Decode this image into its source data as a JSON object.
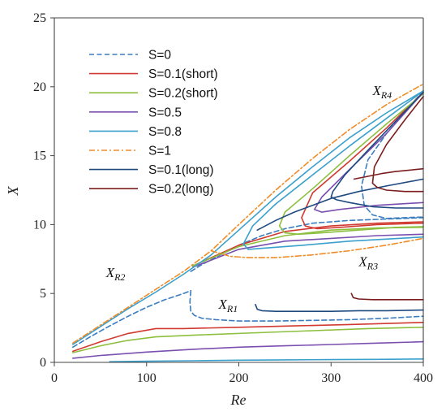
{
  "chart_data": {
    "type": "line",
    "xlabel": "Re",
    "ylabel": "X",
    "xlim": [
      0,
      400
    ],
    "ylim": [
      0,
      25
    ],
    "xticks": [
      "0",
      "100",
      "200",
      "300",
      "400"
    ],
    "yticks": [
      "0",
      "5",
      "10",
      "15",
      "20",
      "25"
    ],
    "grid": false,
    "legend_position": "top-left",
    "series": [
      {
        "name": "S=0",
        "color": "#3A7DC0",
        "dash": "dashed",
        "curves": [
          {
            "x": [
              20,
              40,
              60,
              80,
              100,
              120,
              140,
              148
            ],
            "y": [
              1.1,
              1.9,
              2.65,
              3.35,
              4.0,
              4.55,
              5.0,
              5.2
            ]
          },
          {
            "x": [
              148,
              147,
              148,
              152,
              160,
              175,
              200,
              240,
              280,
              320,
              360,
              400
            ],
            "y": [
              5.2,
              4.4,
              3.7,
              3.4,
              3.2,
              3.1,
              3.0,
              3.0,
              3.05,
              3.1,
              3.2,
              3.35
            ]
          },
          {
            "x": [
              148,
              160,
              180,
              200,
              225,
              250,
              280,
              320,
              360,
              400
            ],
            "y": [
              6.6,
              7.1,
              7.8,
              8.5,
              9.2,
              9.7,
              10.1,
              10.3,
              10.4,
              10.5
            ]
          },
          {
            "x": [
              400,
              380,
              360,
              340,
              333,
              336,
              345,
              360,
              380,
              400
            ],
            "y": [
              19.7,
              18.2,
              16.6,
              14.7,
              12.8,
              11.4,
              10.7,
              10.45,
              10.5,
              10.55
            ]
          }
        ]
      },
      {
        "name": "S=0.1(short)",
        "color": "#D03A30",
        "dash": "solid",
        "curves": [
          {
            "x": [
              20,
              50,
              80,
              110,
              140,
              200,
              260,
              320,
              400
            ],
            "y": [
              0.8,
              1.5,
              2.1,
              2.45,
              2.45,
              2.55,
              2.65,
              2.75,
              2.9
            ]
          },
          {
            "x": [
              150,
              200,
              250,
              300,
              350,
              400
            ],
            "y": [
              7.0,
              8.5,
              9.5,
              9.9,
              10.1,
              10.2
            ]
          },
          {
            "x": [
              400,
              360,
              320,
              280,
              268,
              272,
              285,
              310,
              350,
              400
            ],
            "y": [
              19.6,
              17.0,
              14.6,
              12.3,
              10.5,
              9.9,
              9.7,
              9.8,
              10.0,
              10.1
            ]
          }
        ]
      },
      {
        "name": "S=0.2(short)",
        "color": "#8DBF3F",
        "dash": "solid",
        "curves": [
          {
            "x": [
              20,
              50,
              80,
              110,
              160,
              220,
              280,
              340,
              400
            ],
            "y": [
              0.7,
              1.2,
              1.6,
              1.85,
              2.0,
              2.15,
              2.3,
              2.45,
              2.55
            ]
          },
          {
            "x": [
              150,
              200,
              250,
              300,
              350,
              400
            ],
            "y": [
              7.0,
              8.4,
              9.2,
              9.6,
              9.75,
              9.8
            ]
          },
          {
            "x": [
              400,
              360,
              320,
              280,
              250,
              244,
              250,
              265,
              290,
              330,
              370,
              400
            ],
            "y": [
              19.5,
              17.3,
              15.0,
              12.6,
              10.9,
              9.9,
              9.4,
              9.3,
              9.4,
              9.6,
              9.8,
              9.85
            ]
          }
        ]
      },
      {
        "name": "S=0.5",
        "color": "#7A4FB0",
        "dash": "solid",
        "curves": [
          {
            "x": [
              20,
              50,
              100,
              150,
              200,
              250,
              300,
              350,
              400
            ],
            "y": [
              0.3,
              0.5,
              0.75,
              0.95,
              1.1,
              1.2,
              1.3,
              1.4,
              1.5
            ]
          },
          {
            "x": [
              150,
              200,
              250,
              300,
              350,
              400
            ],
            "y": [
              6.9,
              8.2,
              8.8,
              9.0,
              9.2,
              9.3
            ]
          },
          {
            "x": [
              400,
              360,
              320,
              290,
              282,
              290,
              310,
              350,
              400
            ],
            "y": [
              19.6,
              16.6,
              14.0,
              12.0,
              11.1,
              10.9,
              11.1,
              11.4,
              11.6
            ]
          }
        ]
      },
      {
        "name": "S=0.8",
        "color": "#3BA0CC",
        "dash": "solid",
        "curves": [
          {
            "x": [
              60,
              100,
              150,
              200,
              250,
              300,
              350,
              400
            ],
            "y": [
              0.05,
              0.08,
              0.12,
              0.16,
              0.18,
              0.2,
              0.22,
              0.25
            ]
          },
          {
            "x": [
              20,
              50,
              80,
              110,
              140,
              170,
              200,
              240,
              280,
              320,
              360,
              400
            ],
            "y": [
              1.3,
              2.6,
              3.9,
              5.1,
              6.4,
              7.8,
              9.6,
              12.0,
              14.2,
              16.3,
              18.1,
              19.7
            ]
          },
          {
            "x": [
              400,
              360,
              320,
              280,
              240,
              215,
              205,
              210,
              230,
              270,
              320,
              400
            ],
            "y": [
              19.7,
              17.7,
              15.7,
              13.6,
              11.5,
              9.9,
              8.6,
              8.2,
              8.3,
              8.5,
              8.8,
              9.1
            ]
          }
        ]
      },
      {
        "name": "S=1",
        "color": "#F08C28",
        "dash": "dashdot",
        "curves": [
          {
            "x": [
              20,
              50,
              80,
              110,
              140,
              170,
              200,
              240,
              280,
              320,
              360,
              400
            ],
            "y": [
              1.4,
              2.7,
              4.0,
              5.3,
              6.6,
              8.1,
              10.0,
              12.5,
              14.8,
              16.9,
              18.7,
              20.2
            ]
          },
          {
            "x": [
              170,
              180,
              190,
              210,
              240,
              280,
              320,
              360,
              400
            ],
            "y": [
              8.1,
              7.9,
              7.7,
              7.6,
              7.6,
              7.8,
              8.1,
              8.5,
              9.0
            ]
          }
        ]
      },
      {
        "name": "S=0.1(long)",
        "color": "#1E4A80",
        "dash": "solid",
        "curves": [
          {
            "x": [
              218,
              220,
              225,
              240,
              260,
              280,
              300,
              330,
              360,
              400
            ],
            "y": [
              4.2,
              3.85,
              3.75,
              3.7,
              3.7,
              3.7,
              3.7,
              3.75,
              3.75,
              3.8
            ]
          },
          {
            "x": [
              220,
              240,
              260,
              280,
              300,
              330,
              360,
              400
            ],
            "y": [
              9.6,
              10.3,
              10.9,
              11.4,
              11.9,
              12.4,
              12.8,
              13.3
            ]
          },
          {
            "x": [
              400,
              370,
              340,
              315,
              302,
              300,
              306,
              320,
              345,
              370,
              400
            ],
            "y": [
              19.6,
              17.5,
              15.4,
              13.6,
              12.4,
              12.0,
              11.8,
              11.6,
              11.3,
              11.2,
              11.2
            ]
          }
        ]
      },
      {
        "name": "S=0.2(long)",
        "color": "#7D1E1E",
        "dash": "solid",
        "curves": [
          {
            "x": [
              322,
              324,
              330,
              345,
              370,
              400
            ],
            "y": [
              5.0,
              4.7,
              4.6,
              4.55,
              4.55,
              4.55
            ]
          },
          {
            "x": [
              325,
              340,
              355,
              370,
              385,
              400
            ],
            "y": [
              13.3,
              13.5,
              13.7,
              13.85,
              13.95,
              14.05
            ]
          },
          {
            "x": [
              400,
              380,
              360,
              347,
              345,
              350,
              360,
              380,
              400
            ],
            "y": [
              19.3,
              17.6,
              15.8,
              14.2,
              13.0,
              12.7,
              12.5,
              12.4,
              12.4
            ]
          }
        ]
      }
    ],
    "annotations": [
      {
        "main": "X",
        "sub": "R4",
        "x": 345,
        "y": 19.4
      },
      {
        "main": "X",
        "sub": "R2",
        "x": 56,
        "y": 6.2
      },
      {
        "main": "X",
        "sub": "R1",
        "x": 178,
        "y": 3.9
      },
      {
        "main": "X",
        "sub": "R3",
        "x": 330,
        "y": 7.0
      }
    ]
  }
}
